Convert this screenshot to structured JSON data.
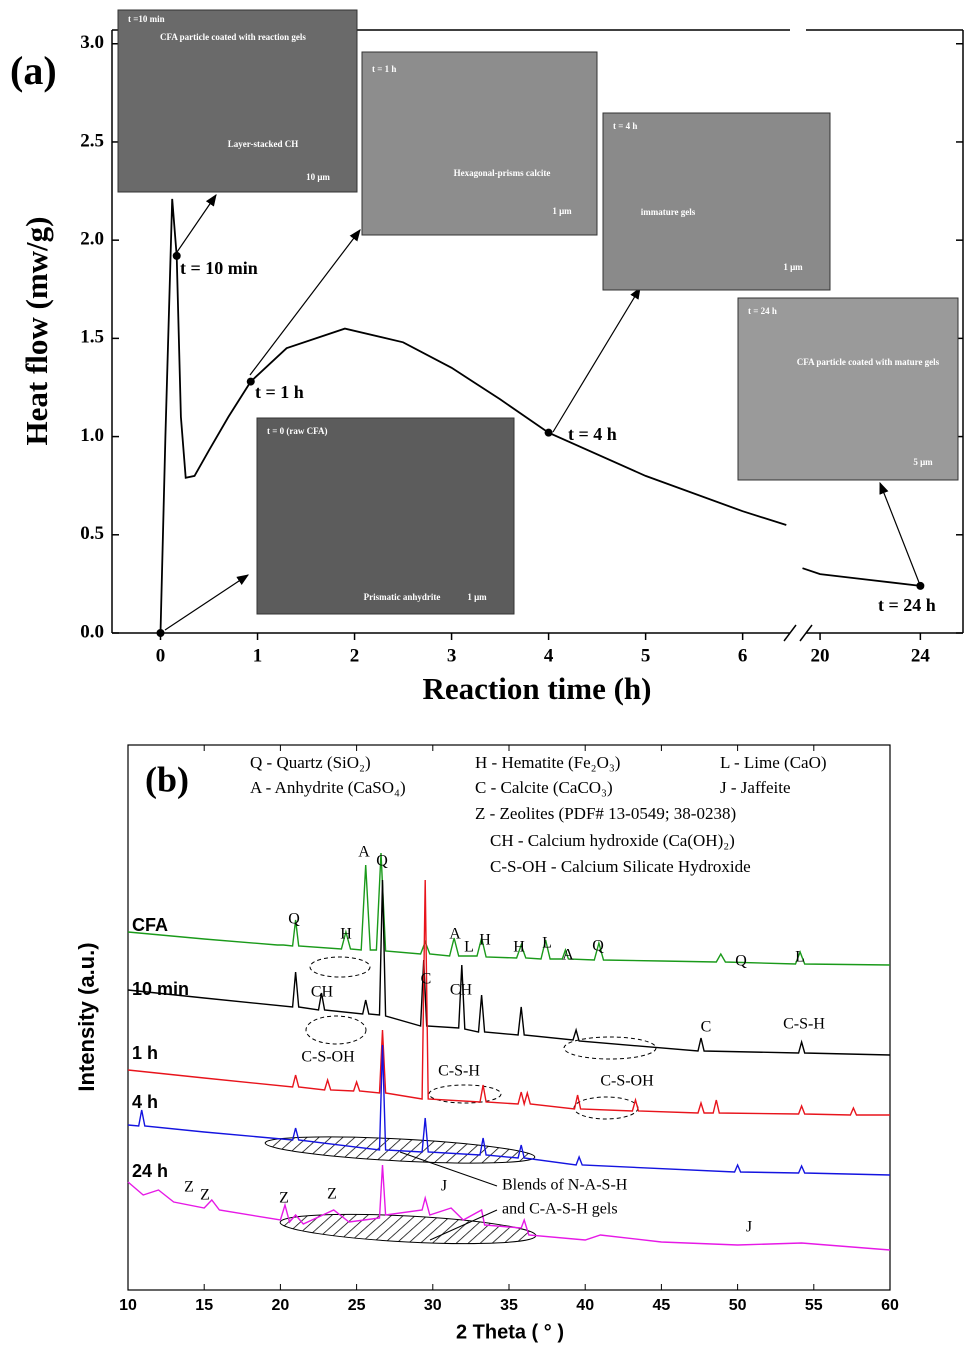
{
  "chart_data": [
    {
      "type": "line",
      "panel": "(a)",
      "x_label": "Reaction time (h)",
      "y_label": "Heat flow (mw/g)",
      "color": "#000000",
      "x": [
        0,
        0.05,
        0.12,
        0.167,
        0.21,
        0.26,
        0.35,
        0.5,
        0.7,
        0.93,
        1.3,
        1.9,
        2.5,
        3,
        3.5,
        4,
        5,
        6,
        6.45,
        6.6,
        19.3,
        20,
        22,
        24
      ],
      "values": [
        0,
        1.0,
        2.21,
        1.92,
        1.1,
        0.79,
        0.8,
        0.93,
        1.1,
        1.28,
        1.45,
        1.55,
        1.48,
        1.35,
        1.19,
        1.02,
        0.8,
        0.62,
        0.55,
        null,
        0.33,
        0.3,
        0.27,
        0.24
      ],
      "points": {
        "x": [
          0,
          0.167,
          0.93,
          4,
          24
        ],
        "values": [
          0,
          1.92,
          1.28,
          1.02,
          0.24
        ],
        "labels": [
          null,
          "t = 10 min",
          "t = 1 h",
          "t = 4 h",
          "t = 24 h"
        ]
      },
      "xlim": [
        -0.5,
        25.7
      ],
      "axis_break": [
        6.55,
        19.2
      ],
      "xticks": [
        0,
        1,
        2,
        3,
        4,
        5,
        6,
        20,
        24
      ],
      "ylim": [
        0,
        3.07
      ],
      "yticks": [
        {
          "value": 0,
          "label": "0.0"
        },
        {
          "value": 0.5,
          "label": "0.5"
        },
        {
          "value": 1,
          "label": "1.0"
        },
        {
          "value": 1.5,
          "label": "1.5"
        },
        {
          "value": 2,
          "label": "2.0"
        },
        {
          "value": 2.5,
          "label": "2.5"
        },
        {
          "value": 3,
          "label": "3.0"
        }
      ],
      "insets": [
        [
          "t =10 min",
          "CFA particle coated with reaction gels",
          "Layer-stacked CH",
          "10 μm"
        ],
        [
          "t = 1 h",
          "Hexagonal-prisms calcite",
          "1 μm"
        ],
        [
          "t = 4 h",
          "immature gels",
          "1 μm"
        ],
        [
          "t = 24 h",
          "CFA particle coated with mature gels",
          "5 μm"
        ],
        [
          "t = 0 (raw CFA)",
          "Prismatic anhydrite",
          "1 μm"
        ]
      ]
    },
    {
      "type": "line",
      "panel": "(b)",
      "x_label": "2 Theta ( ° )",
      "y_label": "Intensity (a.u.)",
      "xlim": [
        10,
        60
      ],
      "xticks": [
        10,
        15,
        20,
        25,
        30,
        35,
        40,
        45,
        50,
        55,
        60
      ],
      "ylim": [
        0,
        545
      ],
      "legend": [
        "Q - Quartz (SiO₂)",
        "A - Anhydrite (CaSO₄)",
        "H - Hematite (Fe₂O₃)",
        "C - Calcite (CaCO₃)",
        "Z - Zeolites (PDF# 13-0549; 38-0238)",
        "CH - Calcium hydroxide (Ca(OH)₂)",
        "C-S-OH - Calcium Silicate Hydroxide",
        "L - Lime (CaO)",
        "J - Jaffeite"
      ],
      "annotations": [
        "Q",
        "H",
        "A",
        "Q",
        "A",
        "L",
        "H",
        "H",
        "L",
        "A",
        "Q",
        "Q",
        "L",
        "CH",
        "C",
        "CH",
        "C",
        "C-S-H",
        "C-S-OH",
        "C-S-H",
        "C-S-OH",
        "Z",
        "Z",
        "Z",
        "Z",
        "J",
        "J",
        "Blends of N-A-S-H",
        "and C-A-S-H gels"
      ],
      "series": [
        {
          "name": "CFA",
          "color": "#1a9a1a",
          "x": [
            10,
            15,
            19.8,
            20.2,
            20.8,
            21,
            21.2,
            24,
            24.3,
            24.6,
            25.3,
            25.6,
            25.9,
            26.3,
            26.6,
            26.9,
            29.2,
            29.5,
            29.8,
            31.1,
            31.4,
            31.7,
            32.9,
            33.2,
            33.5,
            35.5,
            35.8,
            36.1,
            37.1,
            37.4,
            37.7,
            38.5,
            38.7,
            38.9,
            40.6,
            40.9,
            41.2,
            45,
            48.6,
            48.9,
            49.2,
            53.8,
            54.1,
            54.4,
            60
          ],
          "values": [
            358,
            351,
            345,
            345,
            344,
            370,
            344,
            341,
            358,
            341,
            340,
            425,
            340,
            340,
            437,
            339,
            336,
            348,
            336,
            334,
            352,
            334,
            334,
            352,
            333,
            332,
            345,
            332,
            331,
            350,
            331,
            331,
            340,
            331,
            330,
            347,
            330,
            329,
            328,
            336,
            328,
            326,
            338,
            326,
            325
          ]
        },
        {
          "name": "10 min",
          "color": "#000000",
          "x": [
            10,
            15,
            20.8,
            21,
            21.2,
            22.5,
            22.7,
            22.9,
            25.4,
            25.6,
            25.8,
            26.5,
            26.7,
            26.9,
            29.2,
            29.4,
            29.6,
            31.7,
            31.9,
            32.1,
            33,
            33.2,
            33.4,
            35.6,
            35.8,
            36,
            39.2,
            39.4,
            39.6,
            47.4,
            47.6,
            47.8,
            54,
            54.2,
            54.4,
            60
          ],
          "values": [
            300,
            292,
            283,
            318,
            283,
            280,
            297,
            280,
            276,
            290,
            276,
            275,
            410,
            274,
            264,
            330,
            264,
            262,
            325,
            261,
            258,
            295,
            258,
            255,
            283,
            255,
            250,
            260,
            249,
            239,
            252,
            239,
            237,
            248,
            237,
            235
          ]
        },
        {
          "name": "1 h",
          "color": "#e8141c",
          "x": [
            10,
            15,
            20.8,
            21,
            21.2,
            22.9,
            23.1,
            23.3,
            24.8,
            25,
            25.2,
            26.5,
            26.7,
            26.9,
            29.3,
            29.5,
            29.7,
            33.1,
            33.3,
            33.5,
            35.6,
            35.8,
            36,
            36.2,
            36.4,
            39.3,
            39.5,
            39.7,
            43.1,
            43.3,
            43.5,
            47.4,
            47.6,
            47.8,
            48.4,
            48.6,
            48.8,
            54,
            54.2,
            54.4,
            57.4,
            57.6,
            57.8,
            60
          ],
          "values": [
            220,
            212,
            203,
            215,
            203,
            200,
            210,
            200,
            199,
            208,
            199,
            197,
            260,
            197,
            191,
            410,
            191,
            188,
            205,
            188,
            186,
            198,
            186,
            197,
            186,
            181,
            195,
            181,
            179,
            190,
            179,
            177,
            187,
            177,
            177,
            190,
            177,
            176,
            184,
            176,
            175,
            182,
            175,
            175
          ]
        },
        {
          "name": "4 h",
          "color": "#1414e0",
          "x": [
            10,
            10.7,
            10.9,
            11.1,
            15,
            20.8,
            21,
            21.2,
            26.5,
            26.7,
            26.9,
            29.3,
            29.5,
            29.7,
            33.1,
            33.3,
            33.5,
            35.6,
            35.8,
            36,
            39.4,
            39.6,
            39.8,
            49.8,
            50,
            50.2,
            54,
            54.2,
            54.4,
            60
          ],
          "values": [
            165,
            164,
            180,
            164,
            158,
            150,
            162,
            150,
            140,
            245,
            140,
            138,
            172,
            138,
            135,
            152,
            135,
            132,
            145,
            132,
            125,
            133,
            125,
            118,
            125,
            118,
            117,
            124,
            117,
            115
          ]
        },
        {
          "name": "24 h",
          "color": "#e619e6",
          "x": [
            10,
            11,
            12,
            13,
            15,
            15.5,
            16,
            20,
            20.3,
            20.6,
            21,
            21.5,
            23.5,
            24.5,
            25.5,
            26.5,
            26.7,
            26.9,
            29.3,
            29.5,
            29.8,
            31.2,
            32,
            33.2,
            33.4,
            35.8,
            36,
            36.3,
            40,
            41,
            45,
            50,
            54.2,
            60
          ],
          "values": [
            108,
            95,
            100,
            88,
            82,
            90,
            80,
            70,
            85,
            68,
            75,
            66,
            80,
            68,
            70,
            72,
            125,
            75,
            80,
            92,
            75,
            82,
            70,
            80,
            65,
            62,
            70,
            55,
            50,
            55,
            48,
            45,
            47,
            40
          ]
        }
      ]
    }
  ]
}
